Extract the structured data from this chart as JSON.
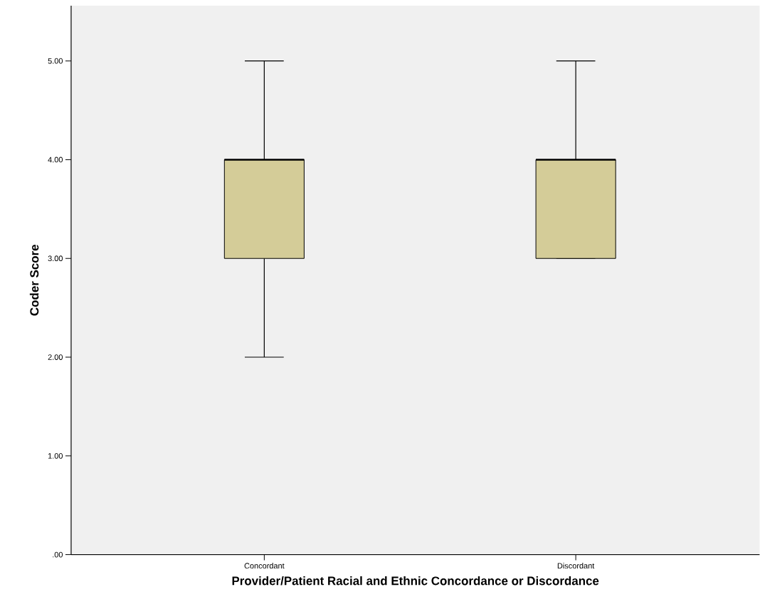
{
  "chart_data": {
    "type": "box",
    "xlabel": "Provider/Patient Racial and Ethnic Concordance or Discordance",
    "ylabel": "Coder Score",
    "categories": [
      "Concordant",
      "Discordant"
    ],
    "boxes": [
      {
        "low": 2,
        "q1": 3,
        "median": 4,
        "q3": 4,
        "high": 5
      },
      {
        "low": 3,
        "q1": 3,
        "median": 4,
        "q3": 4,
        "high": 5
      }
    ],
    "color": "#d4cc98",
    "ylim": [
      0,
      5.56
    ],
    "yticks": [
      {
        "value": 0,
        "label": ".00"
      },
      {
        "value": 1,
        "label": "1.00"
      },
      {
        "value": 2,
        "label": "2.00"
      },
      {
        "value": 3,
        "label": "3.00"
      },
      {
        "value": 4,
        "label": "4.00"
      },
      {
        "value": 5,
        "label": "5.00"
      }
    ]
  }
}
